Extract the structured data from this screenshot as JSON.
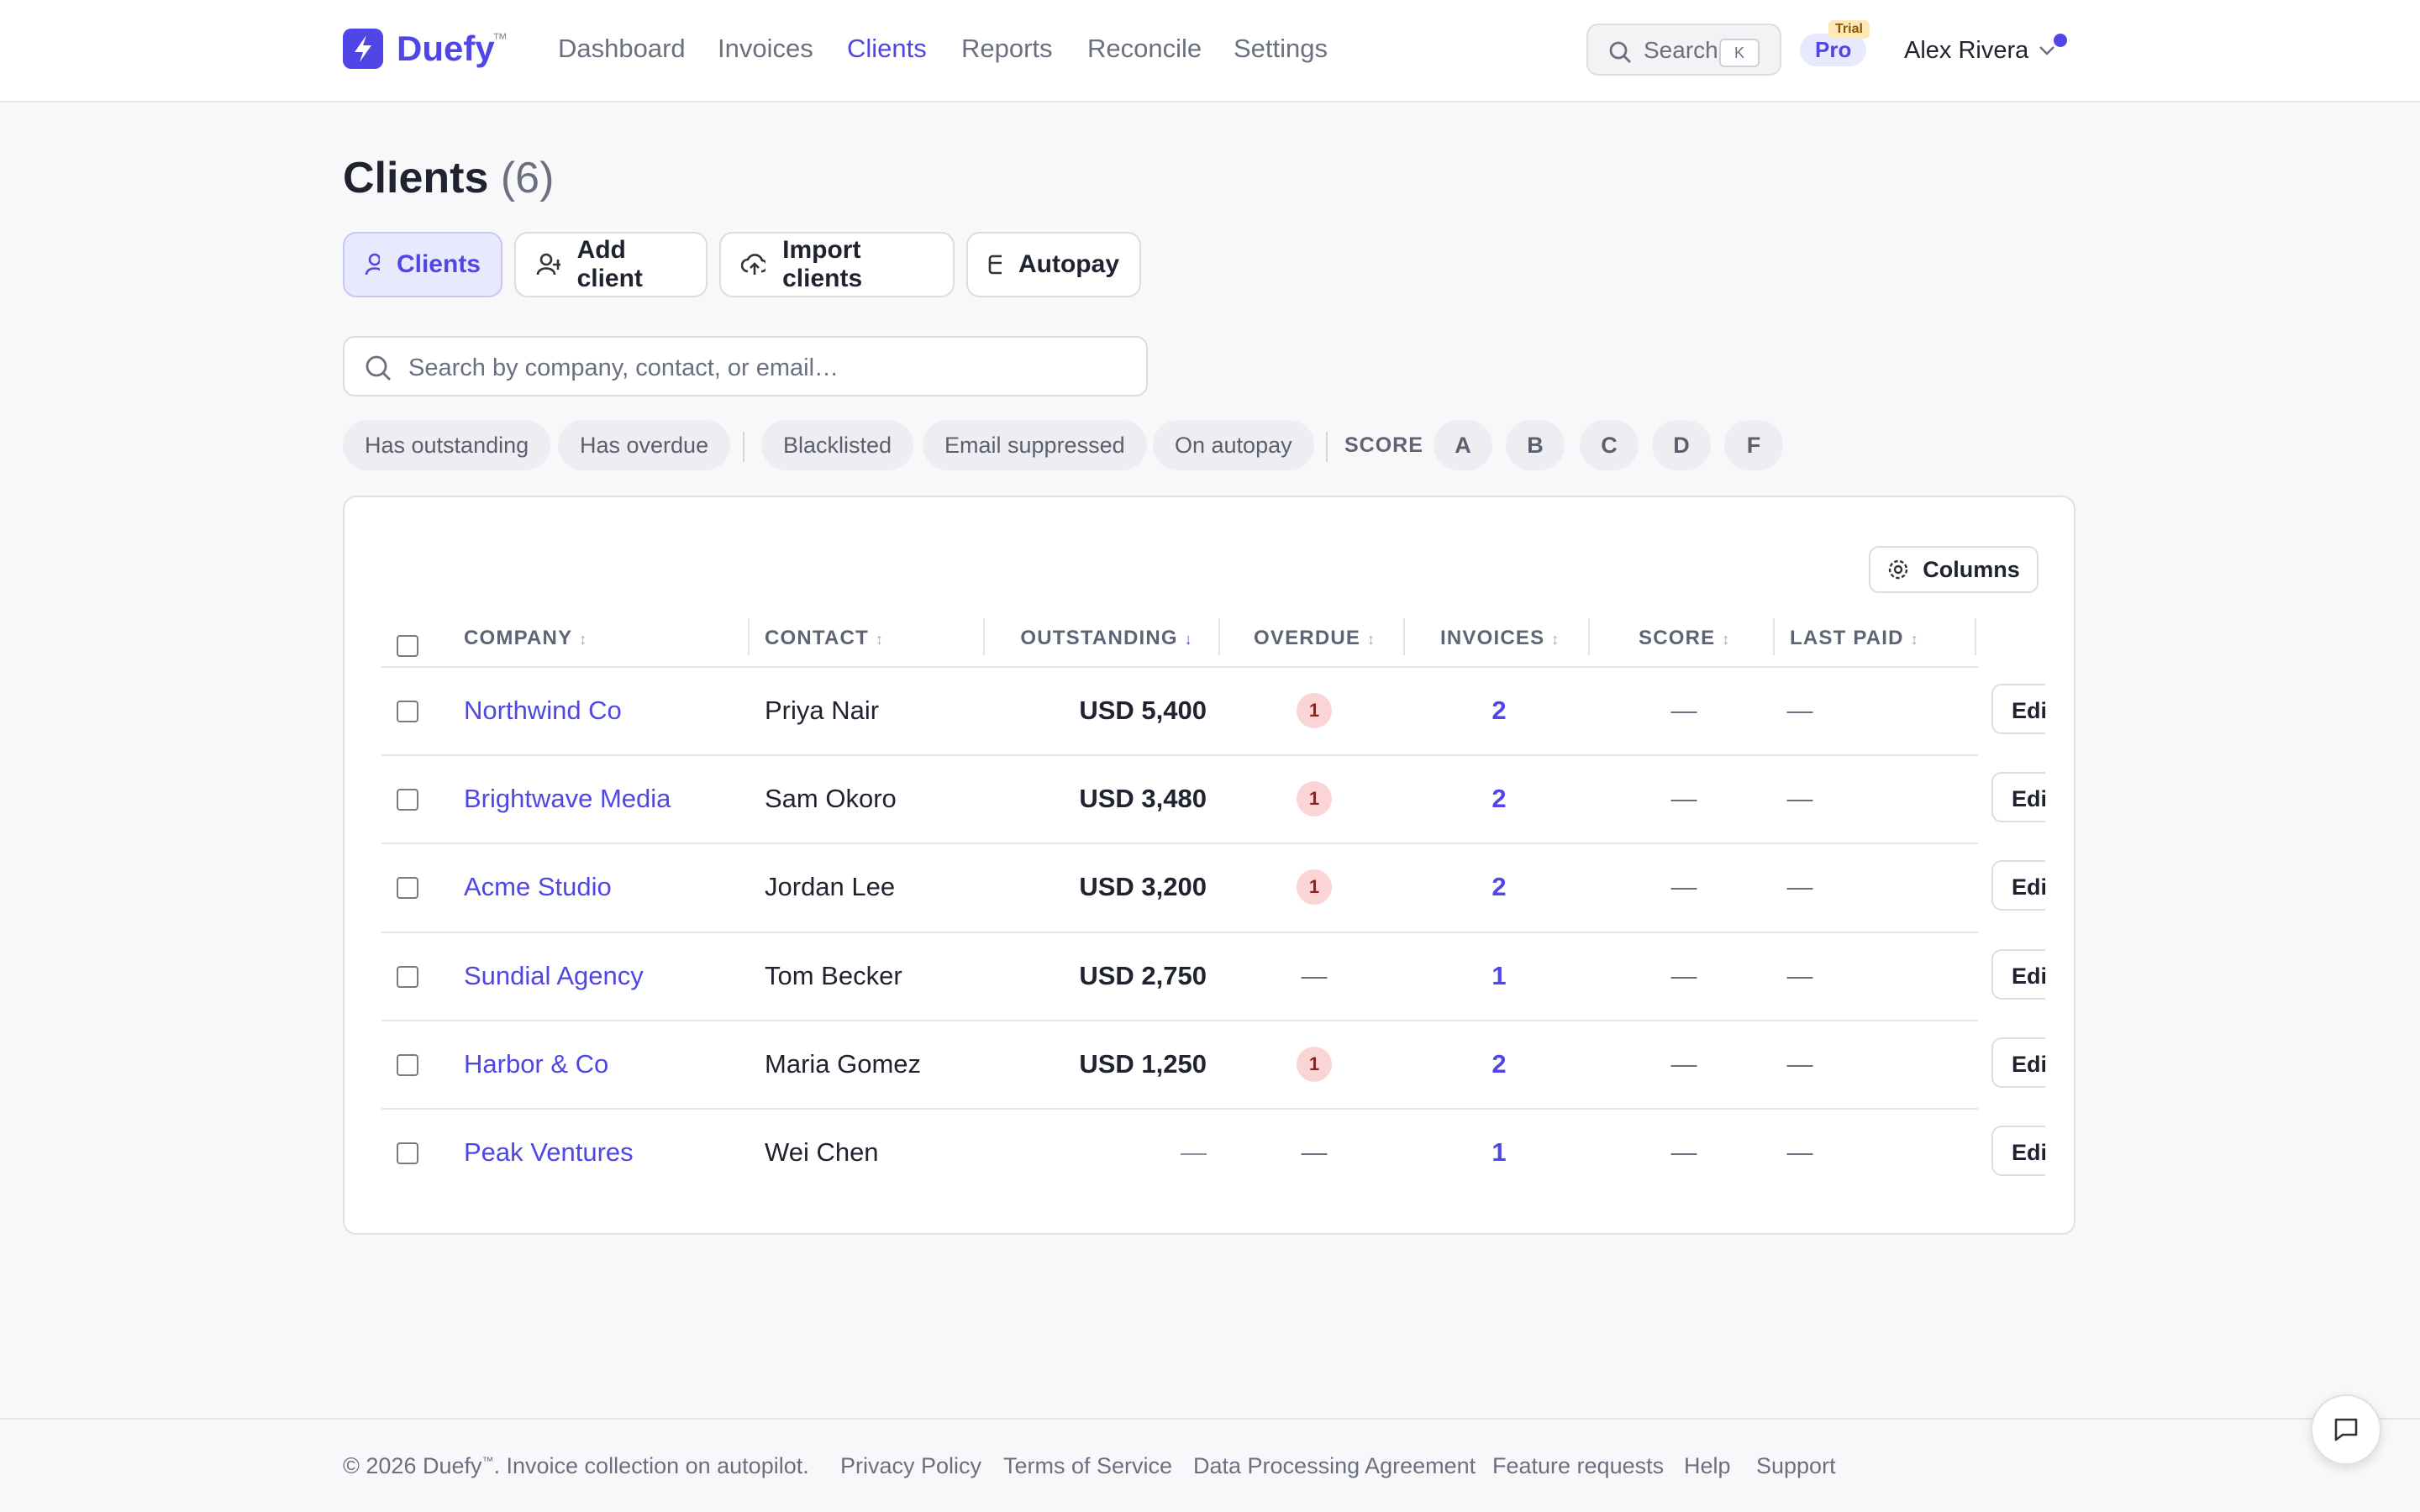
{
  "nav": {
    "brand": "Duefy",
    "brand_mark": "™",
    "links": [
      "Dashboard",
      "Invoices",
      "Clients",
      "Reports",
      "Reconcile",
      "Settings"
    ],
    "active_index": 2,
    "search": "Search",
    "search_key": "K",
    "plan": "Pro",
    "plan_badge": "Trial",
    "user": "Alex Rivera"
  },
  "page": {
    "title": "Clients",
    "count": "(6)",
    "tabs": [
      "Clients",
      "Add client",
      "Import clients",
      "Autopay"
    ],
    "search_placeholder": "Search by company, contact, or email…",
    "filters": [
      "Has outstanding",
      "Has overdue"
    ],
    "filters2": [
      "Blacklisted",
      "Email suppressed",
      "On autopay"
    ],
    "score_label": "SCORE",
    "scores": [
      "A",
      "B",
      "C",
      "D",
      "F"
    ]
  },
  "table": {
    "columns_button": "Columns",
    "headers": [
      "COMPANY",
      "CONTACT",
      "OUTSTANDING",
      "OVERDUE",
      "INVOICES",
      "SCORE",
      "LAST PAID"
    ],
    "sort_index": 2,
    "action": "Edit",
    "rows": [
      [
        "Northwind Co",
        "Priya Nair",
        "USD 5,400",
        "1",
        "2",
        "—",
        "—"
      ],
      [
        "Brightwave Media",
        "Sam Okoro",
        "USD 3,480",
        "1",
        "2",
        "—",
        "—"
      ],
      [
        "Acme Studio",
        "Jordan Lee",
        "USD 3,200",
        "1",
        "2",
        "—",
        "—"
      ],
      [
        "Sundial Agency",
        "Tom Becker",
        "USD 2,750",
        "—",
        "1",
        "—",
        "—"
      ],
      [
        "Harbor & Co",
        "Maria Gomez",
        "USD 1,250",
        "1",
        "2",
        "—",
        "—"
      ],
      [
        "Peak Ventures",
        "Wei Chen",
        "—",
        "—",
        "1",
        "—",
        "—"
      ]
    ]
  },
  "footer": {
    "copyright": "© 2026 Duefy",
    "mark": "™",
    "tagline": ". Invoice collection on autopilot.",
    "links": [
      "Privacy Policy",
      "Terms of Service",
      "Data Processing Agreement",
      "Feature requests",
      "Help",
      "Support"
    ]
  }
}
